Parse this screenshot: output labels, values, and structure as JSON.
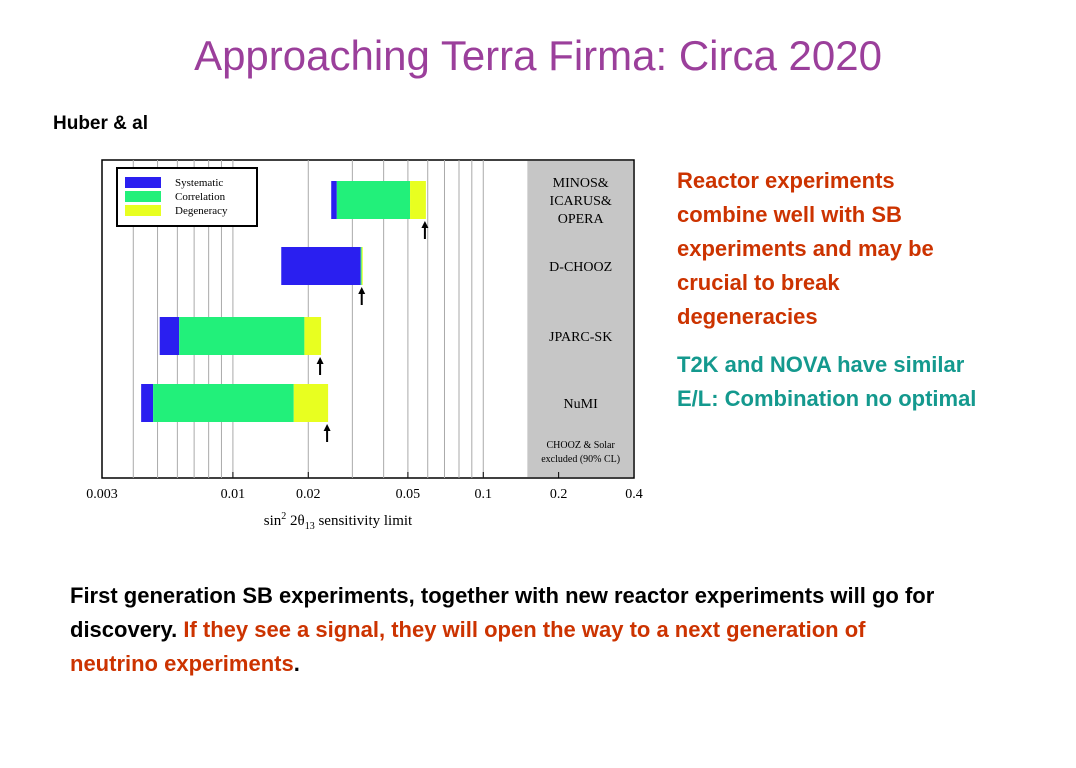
{
  "slide": {
    "title": "Approaching Terra Firma: Circa 2020",
    "credit": "Huber & al",
    "side_red": "Reactor experiments combine well with SB experiments and may be crucial to break degeneracies",
    "side_teal": "T2K and NOVA have similar E/L: Combination no optimal",
    "bottom_plain": "First generation SB experiments, together with new reactor experiments will go for discovery. ",
    "bottom_highlight": "If they see a signal, they will open the way to a next generation of neutrino experiments",
    "bottom_end": "."
  },
  "chart_data": {
    "type": "bar",
    "subtype": "horizontal-stacked-log",
    "x_scale": "log",
    "xlim": [
      0.003,
      0.4
    ],
    "x_ticks": [
      0.003,
      0.01,
      0.02,
      0.05,
      0.1,
      0.2,
      0.4
    ],
    "x_tick_labels": [
      "0.003",
      "0.01",
      "0.02",
      "0.05",
      "0.1",
      "0.2",
      "0.4"
    ],
    "xlabel_pre": "sin",
    "xlabel_sup": "2",
    "xlabel_mid": " 2θ",
    "xlabel_sub": "13",
    "xlabel_post": "  sensitivity limit",
    "grid": true,
    "legend_position": "top-left",
    "colors": {
      "Systematic": "#2a1ff0",
      "Correlation": "#22f07a",
      "Degeneracy": "#e8ff20",
      "excluded": "#c6c6c6"
    },
    "excluded_region": {
      "from": 0.15,
      "to": 0.4,
      "label_line1": "CHOOZ & Solar",
      "label_line2": "excluded (90% CL)"
    },
    "series": [
      {
        "name": "Systematic"
      },
      {
        "name": "Correlation"
      },
      {
        "name": "Degeneracy"
      }
    ],
    "experiments": [
      {
        "label": [
          "MINOS&",
          "ICARUS&",
          "OPERA"
        ],
        "start": 0.0247,
        "systematic_end": 0.026,
        "correlation_end": 0.051,
        "degeneracy_end": 0.059,
        "arrow": 0.059
      },
      {
        "label": [
          "D-CHOOZ"
        ],
        "start": 0.0156,
        "systematic_end": 0.0324,
        "correlation_end": 0.0327,
        "degeneracy_end": 0.033,
        "arrow": 0.033
      },
      {
        "label": [
          "JPARC-SK"
        ],
        "start": 0.0051,
        "systematic_end": 0.0061,
        "correlation_end": 0.0193,
        "degeneracy_end": 0.0225,
        "arrow": 0.0225
      },
      {
        "label": [
          "NuMI"
        ],
        "start": 0.0043,
        "systematic_end": 0.0048,
        "correlation_end": 0.0175,
        "degeneracy_end": 0.024,
        "arrow": 0.024
      }
    ]
  }
}
